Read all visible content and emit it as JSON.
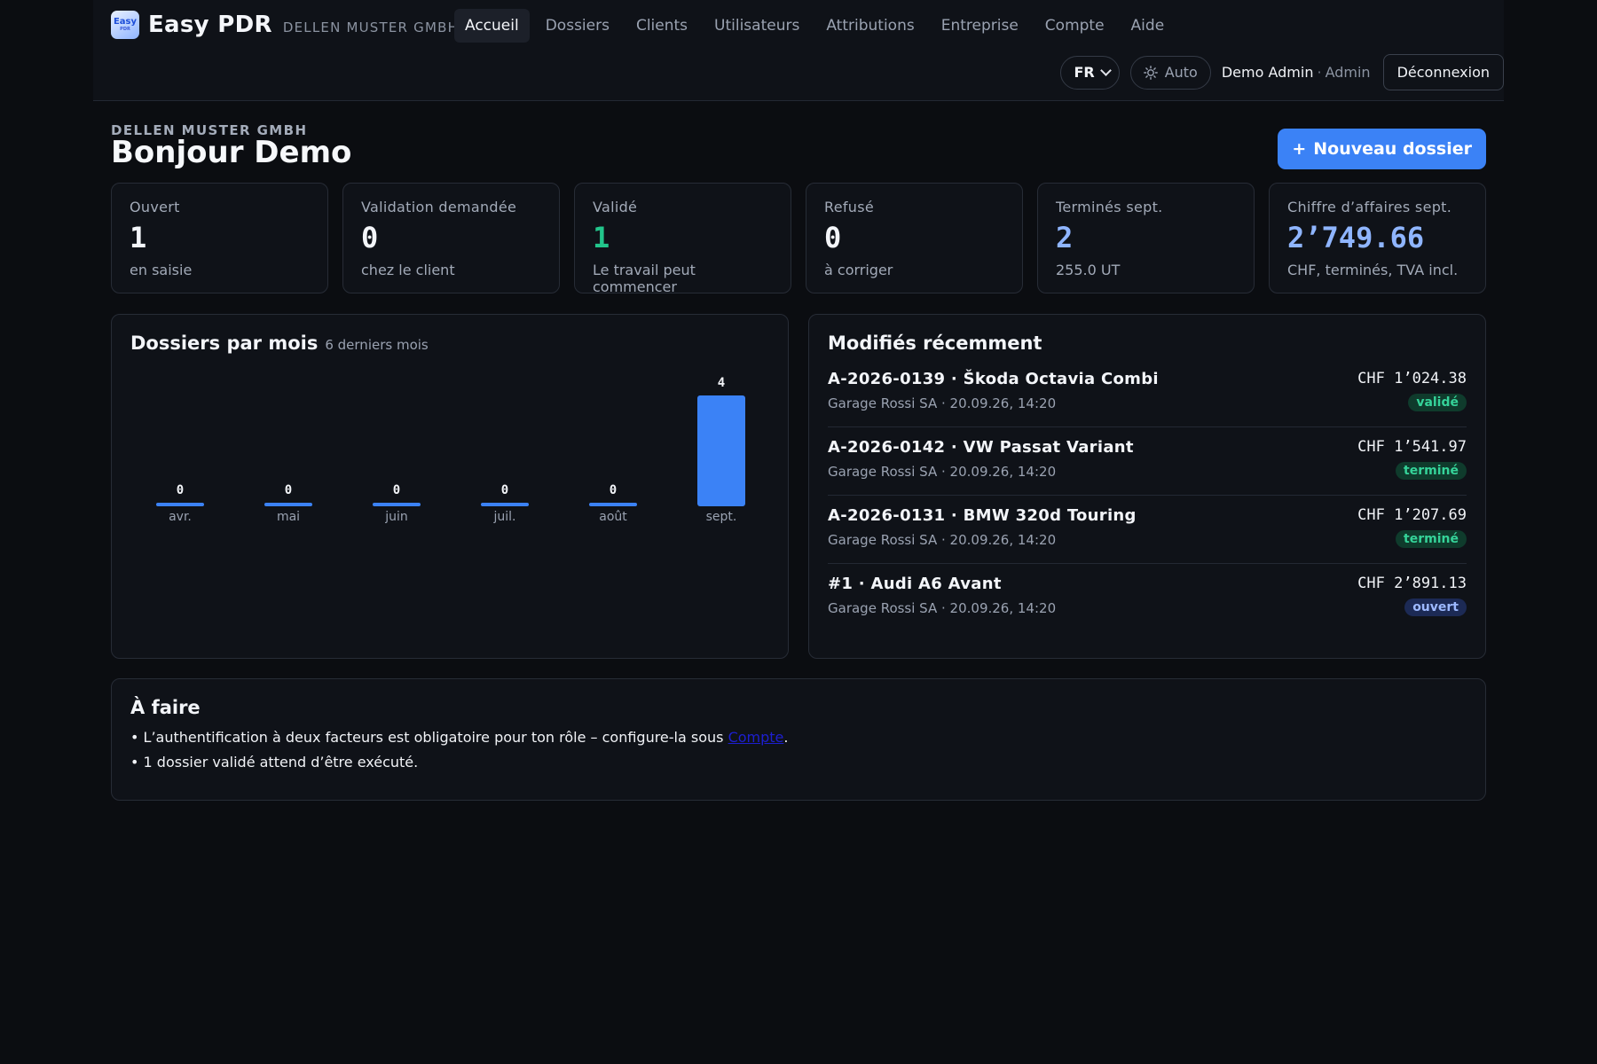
{
  "app": {
    "name": "Easy PDR",
    "company": "DELLEN MUSTER GMBH",
    "logo_text": "Easy",
    "logo_subtext": "PDR"
  },
  "nav": {
    "items": [
      {
        "label": "Accueil",
        "active": true
      },
      {
        "label": "Dossiers"
      },
      {
        "label": "Clients"
      },
      {
        "label": "Utilisateurs"
      },
      {
        "label": "Attributions"
      },
      {
        "label": "Entreprise"
      },
      {
        "label": "Compte"
      },
      {
        "label": "Aide"
      }
    ]
  },
  "userbar": {
    "language": "FR",
    "theme": "Auto",
    "user_name": "Demo Admin",
    "separator": "·",
    "user_role": "Admin",
    "logout": "Déconnexion"
  },
  "header": {
    "company": "DELLEN MUSTER GMBH",
    "greeting": "Bonjour Demo",
    "new_button": "Nouveau dossier",
    "new_button_icon": "+"
  },
  "stats": [
    {
      "label": "Ouvert",
      "value": "1",
      "sub": "en saisie",
      "color": "#f3f5f9"
    },
    {
      "label": "Validation demandée",
      "value": "0",
      "sub": "chez le client",
      "color": "#f3f5f9"
    },
    {
      "label": "Validé",
      "value": "1",
      "sub": "Le travail peut commencer",
      "color": "#22c58b"
    },
    {
      "label": "Refusé",
      "value": "0",
      "sub": "à corriger",
      "color": "#f3f5f9"
    },
    {
      "label": "Terminés sept.",
      "value": "2",
      "sub": "255.0 UT",
      "color": "#8fb5ff"
    },
    {
      "label": "Chiffre d’affaires sept.",
      "value": "2’749.66",
      "sub": "CHF, terminés, TVA incl.",
      "color": "#8fb5ff"
    }
  ],
  "chart_panel": {
    "title": "Dossiers par mois",
    "subtitle": "6 derniers mois"
  },
  "chart_data": {
    "type": "bar",
    "categories": [
      "avr.",
      "mai",
      "juin",
      "juil.",
      "août",
      "sept."
    ],
    "values": [
      0,
      0,
      0,
      0,
      0,
      4
    ],
    "ylim": [
      0,
      4
    ],
    "bar_color": "#3b82f6",
    "grid": false
  },
  "recent": {
    "title": "Modifiés récemment",
    "items": [
      {
        "title": "A-2026-0139 · Škoda Octavia Combi",
        "meta": "Garage Rossi SA · 20.09.26, 14:20",
        "amount": "CHF 1’024.38",
        "status": "validé",
        "status_class": "valide"
      },
      {
        "title": "A-2026-0142 · VW Passat Variant",
        "meta": "Garage Rossi SA · 20.09.26, 14:20",
        "amount": "CHF 1’541.97",
        "status": "terminé",
        "status_class": "termine"
      },
      {
        "title": "A-2026-0131 · BMW 320d Touring",
        "meta": "Garage Rossi SA · 20.09.26, 14:20",
        "amount": "CHF 1’207.69",
        "status": "terminé",
        "status_class": "termine"
      },
      {
        "title": "#1 · Audi A6 Avant",
        "meta": "Garage Rossi SA · 20.09.26, 14:20",
        "amount": "CHF 2’891.13",
        "status": "ouvert",
        "status_class": "ouvert"
      }
    ]
  },
  "todo": {
    "title": "À faire",
    "item1_prefix": "L’authentification à deux facteurs est obligatoire pour ton rôle – configure-la sous ",
    "item1_link": "Compte",
    "item1_suffix": ".",
    "item2": "1 dossier validé attend d’être exécuté."
  },
  "icons": {
    "theme": "sun-icon",
    "language": "chevron-down-icon"
  }
}
